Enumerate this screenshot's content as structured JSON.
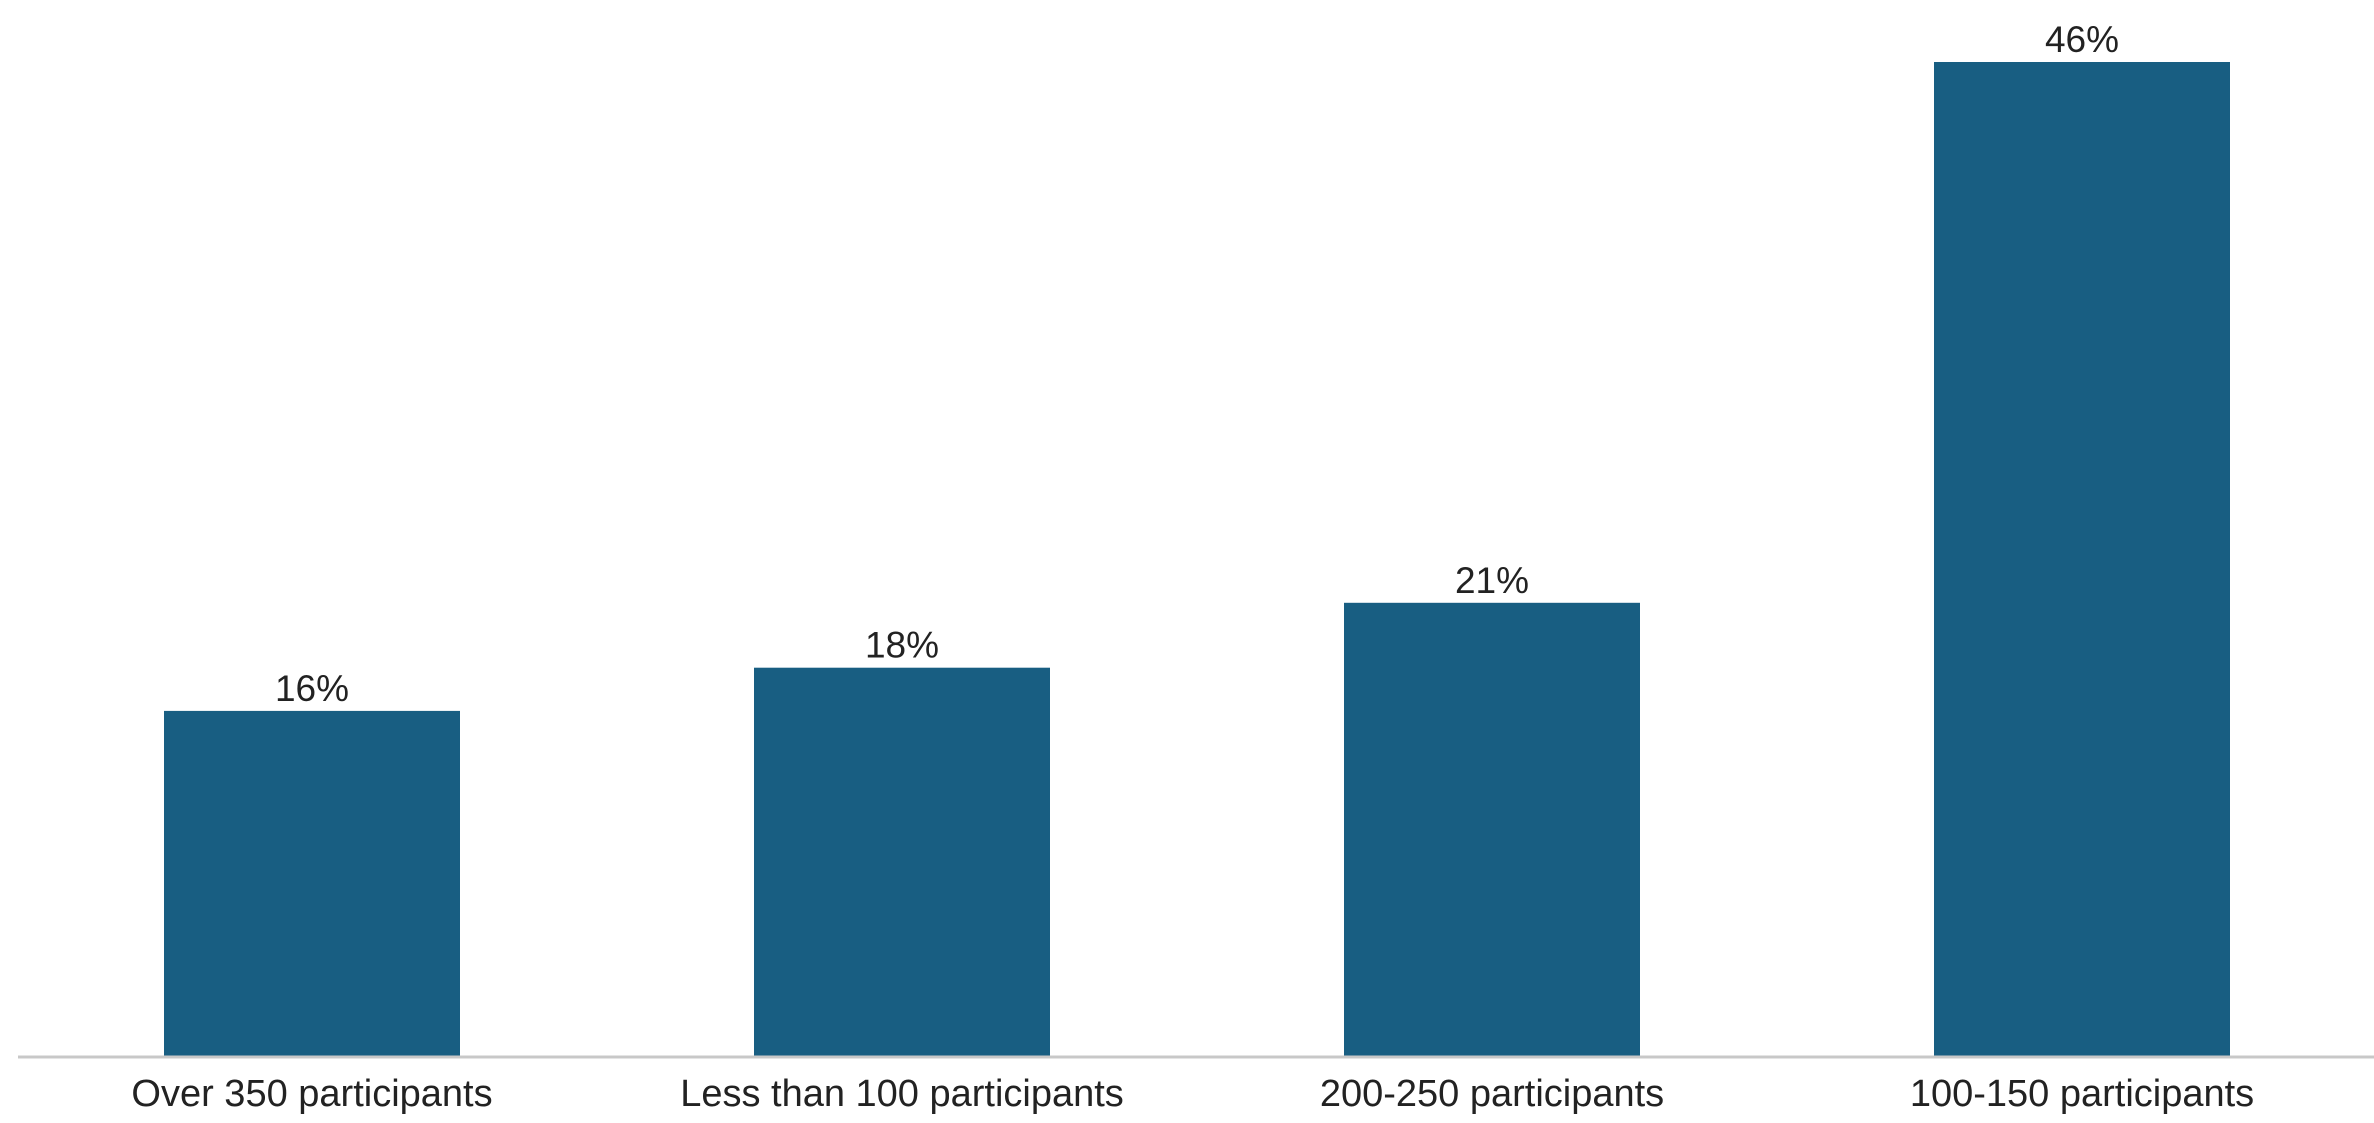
{
  "chart_data": {
    "type": "bar",
    "title": "",
    "xlabel": "",
    "ylabel": "",
    "categories": [
      "Over 350 participants",
      "Less than 100 participants",
      "200-250 participants",
      "100-150 participants"
    ],
    "values": [
      16,
      18,
      21,
      46
    ],
    "value_labels": [
      "16%",
      "18%",
      "21%",
      "46%"
    ],
    "unit": "%",
    "ylim": [
      0,
      46
    ],
    "grid": false,
    "legend": "none",
    "colors": {
      "bar": "#185e82",
      "axis": "#c8c8c8",
      "text": "#222222"
    }
  }
}
